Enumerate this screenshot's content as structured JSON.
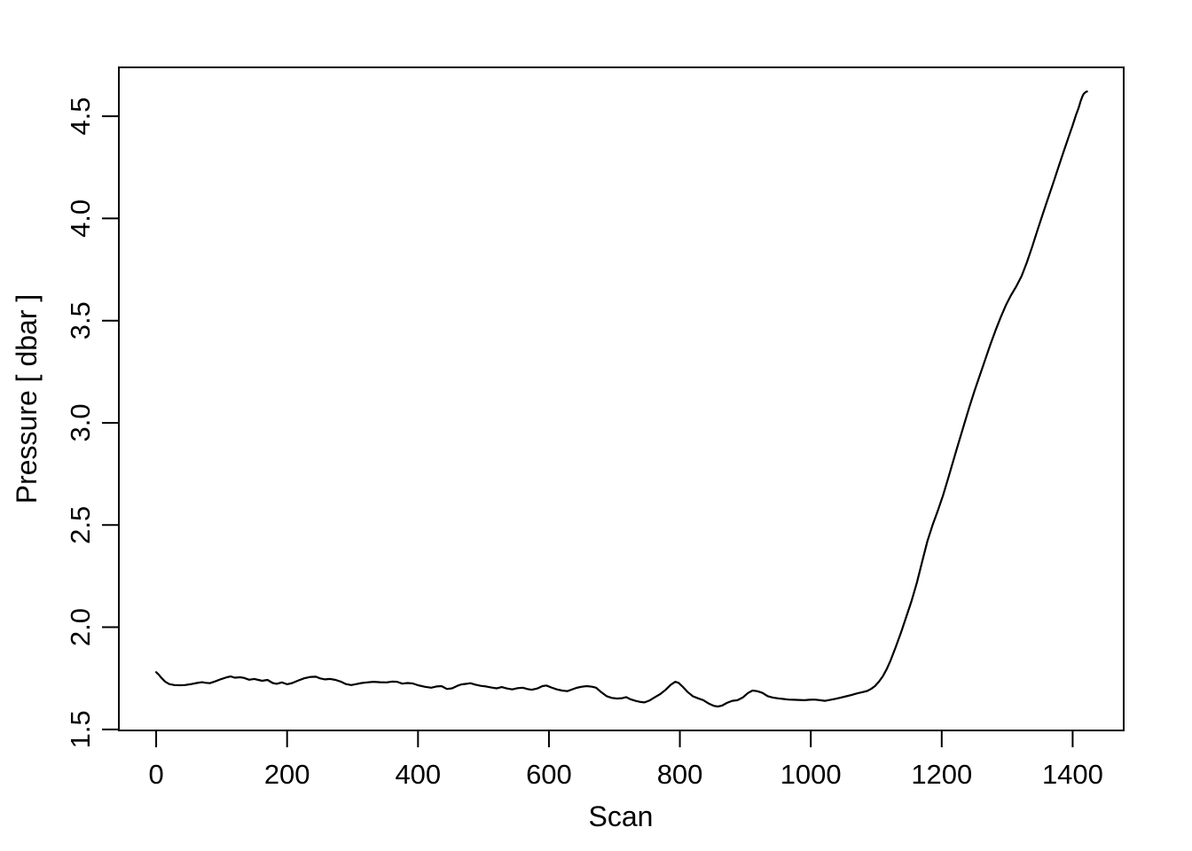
{
  "figure": {
    "background": "#ffffff",
    "foreground": "#000000"
  },
  "chart_data": {
    "type": "line",
    "title": "",
    "xlabel": "Scan",
    "ylabel": "Pressure [ dbar ]",
    "grid": false,
    "legend": false,
    "line_color": "#000000",
    "line_width": 2.2,
    "x_ticks": {
      "values": [
        0,
        200,
        400,
        600,
        800,
        1000,
        1200,
        1400
      ],
      "labels": [
        "0",
        "200",
        "400",
        "600",
        "800",
        "1000",
        "1200",
        "1400"
      ]
    },
    "y_ticks": {
      "values": [
        1.5,
        2.0,
        2.5,
        3.0,
        3.5,
        4.0,
        4.5
      ],
      "labels": [
        "1.5",
        "2.0",
        "2.5",
        "3.0",
        "3.5",
        "4.0",
        "4.5"
      ]
    },
    "xlim": [
      -57,
      1478
    ],
    "ylim": [
      1.495,
      4.739
    ],
    "series": [
      {
        "name": "Pressure",
        "x": [
          0,
          4,
          8,
          14,
          20,
          28,
          36,
          44,
          52,
          62,
          70,
          76,
          82,
          90,
          100,
          108,
          114,
          120,
          128,
          134,
          142,
          150,
          156,
          162,
          170,
          178,
          184,
          192,
          200,
          208,
          216,
          226,
          236,
          244,
          250,
          258,
          266,
          274,
          282,
          290,
          298,
          306,
          314,
          322,
          332,
          342,
          352,
          360,
          368,
          376,
          384,
          392,
          400,
          410,
          420,
          428,
          436,
          444,
          452,
          460,
          466,
          474,
          480,
          488,
          496,
          504,
          512,
          520,
          528,
          536,
          544,
          552,
          560,
          568,
          574,
          582,
          590,
          596,
          604,
          612,
          620,
          628,
          634,
          642,
          650,
          658,
          666,
          672,
          680,
          688,
          696,
          704,
          712,
          718,
          724,
          732,
          740,
          746,
          754,
          762,
          770,
          778,
          786,
          793,
          798,
          804,
          812,
          820,
          828,
          836,
          844,
          852,
          858,
          864,
          872,
          880,
          888,
          896,
          904,
          911,
          918,
          926,
          934,
          942,
          950,
          958,
          966,
          974,
          982,
          990,
          998,
          1006,
          1014,
          1022,
          1030,
          1038,
          1046,
          1054,
          1062,
          1070,
          1078,
          1086,
          1092,
          1098,
          1104,
          1110,
          1116,
          1122,
          1130,
          1138,
          1146,
          1154,
          1162,
          1170,
          1178,
          1186,
          1194,
          1202,
          1210,
          1218,
          1226,
          1234,
          1242,
          1250,
          1258,
          1266,
          1274,
          1282,
          1290,
          1298,
          1306,
          1314,
          1322,
          1330,
          1338,
          1346,
          1354,
          1362,
          1370,
          1378,
          1386,
          1394,
          1400,
          1405,
          1409,
          1412,
          1415,
          1417,
          1419,
          1421,
          1422
        ],
        "y": [
          1.78,
          1.768,
          1.752,
          1.733,
          1.722,
          1.717,
          1.716,
          1.717,
          1.721,
          1.727,
          1.731,
          1.728,
          1.726,
          1.735,
          1.747,
          1.755,
          1.759,
          1.753,
          1.755,
          1.752,
          1.743,
          1.747,
          1.742,
          1.738,
          1.742,
          1.727,
          1.723,
          1.73,
          1.721,
          1.727,
          1.738,
          1.75,
          1.757,
          1.758,
          1.75,
          1.745,
          1.747,
          1.742,
          1.734,
          1.722,
          1.717,
          1.722,
          1.727,
          1.73,
          1.733,
          1.731,
          1.73,
          1.734,
          1.733,
          1.724,
          1.727,
          1.725,
          1.716,
          1.709,
          1.704,
          1.71,
          1.712,
          1.698,
          1.701,
          1.713,
          1.72,
          1.723,
          1.726,
          1.719,
          1.713,
          1.71,
          1.705,
          1.701,
          1.707,
          1.7,
          1.696,
          1.702,
          1.704,
          1.697,
          1.694,
          1.7,
          1.712,
          1.715,
          1.705,
          1.696,
          1.69,
          1.687,
          1.694,
          1.703,
          1.709,
          1.712,
          1.709,
          1.704,
          1.682,
          1.663,
          1.654,
          1.651,
          1.653,
          1.658,
          1.648,
          1.64,
          1.634,
          1.632,
          1.642,
          1.658,
          1.673,
          1.693,
          1.718,
          1.733,
          1.728,
          1.71,
          1.683,
          1.662,
          1.652,
          1.643,
          1.627,
          1.615,
          1.612,
          1.616,
          1.63,
          1.64,
          1.643,
          1.656,
          1.678,
          1.69,
          1.687,
          1.679,
          1.663,
          1.656,
          1.652,
          1.649,
          1.646,
          1.645,
          1.644,
          1.643,
          1.645,
          1.646,
          1.643,
          1.64,
          1.645,
          1.65,
          1.656,
          1.662,
          1.668,
          1.676,
          1.682,
          1.688,
          1.698,
          1.712,
          1.733,
          1.76,
          1.795,
          1.838,
          1.905,
          1.975,
          2.052,
          2.13,
          2.218,
          2.32,
          2.42,
          2.5,
          2.57,
          2.645,
          2.73,
          2.818,
          2.905,
          2.99,
          3.075,
          3.155,
          3.23,
          3.305,
          3.38,
          3.45,
          3.515,
          3.575,
          3.625,
          3.668,
          3.718,
          3.785,
          3.86,
          3.94,
          4.018,
          4.095,
          4.17,
          4.248,
          4.325,
          4.4,
          4.455,
          4.505,
          4.54,
          4.572,
          4.598,
          4.61,
          4.616,
          4.62,
          4.621
        ]
      }
    ]
  }
}
